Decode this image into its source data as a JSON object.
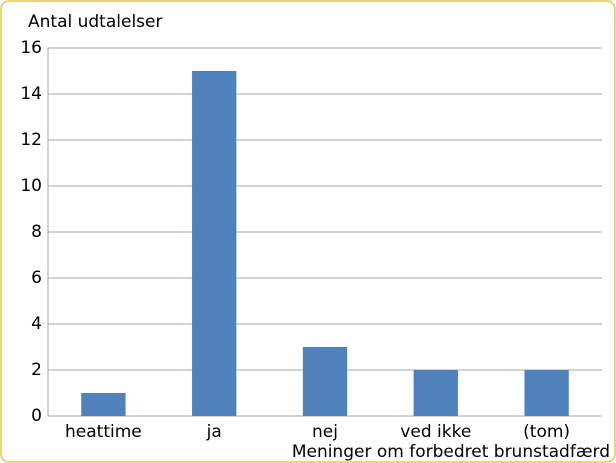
{
  "chart_data": {
    "type": "bar",
    "y_axis_title": "Antal udtalelser",
    "x_axis_title": "Meninger om forbedret brunstadfærd",
    "categories": [
      "heattime",
      "ja",
      "nej",
      "ved ikke",
      "(tom)"
    ],
    "values": [
      1,
      15,
      3,
      2,
      2
    ],
    "color": "#4f81bd",
    "ylim": [
      0,
      16
    ],
    "yticks": [
      0,
      2,
      4,
      6,
      8,
      10,
      12,
      14,
      16
    ],
    "grid": true
  }
}
